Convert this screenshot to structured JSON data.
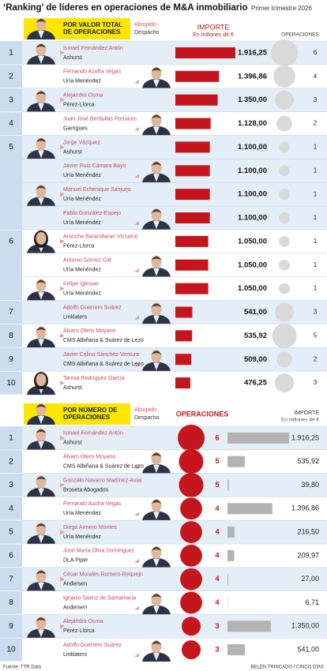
{
  "title": "‘Ranking’ de líderes en operaciones de M&A inmobiliario",
  "subtitle": "Primer trimestre 2026",
  "source": "Fuente: TTR Data",
  "credit": "BELÉN TRINCADO / CINCO DÍAS",
  "chart_data": [
    {
      "type": "bar",
      "header": "POR VALOR TOTAL DE OPERACIONES",
      "lawyer_label": "Abogado",
      "firm_label": "Despacho",
      "value_title": "IMPORTE",
      "value_unit": "En millones de €",
      "count_title": "OPERACIONES",
      "value_color": "#c4161c",
      "count_color": "#d9d9d9",
      "groups": [
        {
          "rank": 1,
          "people": [
            {
              "name": "Ismael Fernández Antón",
              "firm": "Ashurst",
              "value": 1916.25,
              "value_label": "1.916,25",
              "count": 6
            }
          ]
        },
        {
          "rank": 2,
          "people": [
            {
              "name": "Fernando Azofra Vegas",
              "firm": "Uría Menéndez",
              "value": 1396.86,
              "value_label": "1.396,86",
              "count": 4
            }
          ]
        },
        {
          "rank": 3,
          "people": [
            {
              "name": "Alejandro Osma",
              "firm": "Pérez-Llorca",
              "value": 1350,
              "value_label": "1.350,00",
              "count": 3
            }
          ]
        },
        {
          "rank": 4,
          "people": [
            {
              "name": "Juan José Berdullas Pomares",
              "firm": "Garrigues",
              "value": 1128,
              "value_label": "1.128,00",
              "count": 2
            }
          ]
        },
        {
          "rank": 5,
          "people": [
            {
              "name": "Jorge Vázquez",
              "firm": "Ashurst",
              "value": 1100,
              "value_label": "1.100,00",
              "count": 1
            },
            {
              "name": "Javier Ruiz Cámara Bayo",
              "firm": "Uría Menéndez",
              "value": 1100,
              "value_label": "1.100,00",
              "count": 1
            },
            {
              "name": "Manuel Echenique Sanjurjo",
              "firm": "Uría Menéndez",
              "value": 1100,
              "value_label": "1.100,00",
              "count": 1
            },
            {
              "name": "Pablo González-Espejo",
              "firm": "Uría Menéndez",
              "value": 1100,
              "value_label": "1.100,00",
              "count": 1
            }
          ]
        },
        {
          "rank": 6,
          "people": [
            {
              "name": "Arancha Barandiaran Vizcaíno",
              "firm": "Pérez-Llorca",
              "value": 1050,
              "value_label": "1.050,00",
              "count": 1
            },
            {
              "name": "Antonio Gómez Cid",
              "firm": "Uría Menéndez",
              "value": 1050,
              "value_label": "1.050,00",
              "count": 1
            },
            {
              "name": "Felipe Iglesias",
              "firm": "Uría Menéndez",
              "value": 1050,
              "value_label": "1.050,00",
              "count": 1
            }
          ]
        },
        {
          "rank": 7,
          "people": [
            {
              "name": "Adolfo Guerrero Suárez",
              "firm": "Linklaters",
              "value": 541,
              "value_label": "541,00",
              "count": 3
            }
          ]
        },
        {
          "rank": 8,
          "people": [
            {
              "name": "Álvaro Otero Moyano",
              "firm": "CMS Albiñana & Suárez de Lezo",
              "value": 535.92,
              "value_label": "535,92",
              "count": 5
            }
          ]
        },
        {
          "rank": 9,
          "people": [
            {
              "name": "Javier Colino Sánchez-Ventura",
              "firm": "CMS Albiñana & Suárez de Lezo",
              "value": 509,
              "value_label": "509,00",
              "count": 2
            }
          ]
        },
        {
          "rank": 10,
          "people": [
            {
              "name": "Tannia Rodríguez García",
              "firm": "Ashurst",
              "value": 476.25,
              "value_label": "476,25",
              "count": 3
            }
          ]
        }
      ]
    },
    {
      "type": "bubble",
      "header": "POR NÚMERO DE OPERACIONES",
      "lawyer_label": "Abogado",
      "firm_label": "Despacho",
      "count_title": "OPERACIONES",
      "value_title": "IMPORTE",
      "value_unit": "En millones de €",
      "value_color": "#b3b3b3",
      "count_color": "#c4161c",
      "groups": [
        {
          "rank": 1,
          "people": [
            {
              "name": "Ismael Fernández Antón",
              "firm": "Ashurst",
              "count": 6,
              "value": 1916.25,
              "value_label": "1.916,25"
            }
          ]
        },
        {
          "rank": 2,
          "people": [
            {
              "name": "Álvaro Otero Moyano",
              "firm": "CMS Albiñana & Suárez de Lezo",
              "count": 5,
              "value": 535.92,
              "value_label": "535,92"
            }
          ]
        },
        {
          "rank": 3,
          "people": [
            {
              "name": "Gonzalo Navarro Martínez-Avial",
              "firm": "Broseta Abogados",
              "count": 5,
              "value": 39.8,
              "value_label": "39,80"
            }
          ]
        },
        {
          "rank": 4,
          "people": [
            {
              "name": "Fernando Azofra Vegas",
              "firm": "Uría Menéndez",
              "count": 4,
              "value": 1396.86,
              "value_label": "1.396,86"
            }
          ]
        },
        {
          "rank": 5,
          "people": [
            {
              "name": "Diego Armero Montes",
              "firm": "Uría Menéndez",
              "count": 4,
              "value": 216.5,
              "value_label": "216,50"
            }
          ]
        },
        {
          "rank": 6,
          "people": [
            {
              "name": "José María Oliva Domínguez",
              "firm": "DLA Piper",
              "count": 4,
              "value": 209.97,
              "value_label": "209,97"
            }
          ]
        },
        {
          "rank": 7,
          "people": [
            {
              "name": "César Morales Romero-Requejo",
              "firm": "Andersen",
              "count": 4,
              "value": 27,
              "value_label": "27,00"
            }
          ]
        },
        {
          "rank": 8,
          "people": [
            {
              "name": "Ignacio Sáenz de Santamaría",
              "firm": "Andersen",
              "count": 4,
              "value": 6.71,
              "value_label": "6,71"
            }
          ]
        },
        {
          "rank": 9,
          "people": [
            {
              "name": "Alejandro Osma",
              "firm": "Pérez-Llorca",
              "count": 3,
              "value": 1350,
              "value_label": "1.350,00"
            }
          ]
        },
        {
          "rank": 10,
          "people": [
            {
              "name": "Adolfo Guerrero Suárez",
              "firm": "Linklaters",
              "count": 3,
              "value": 541,
              "value_label": "541,00"
            }
          ]
        }
      ]
    }
  ]
}
